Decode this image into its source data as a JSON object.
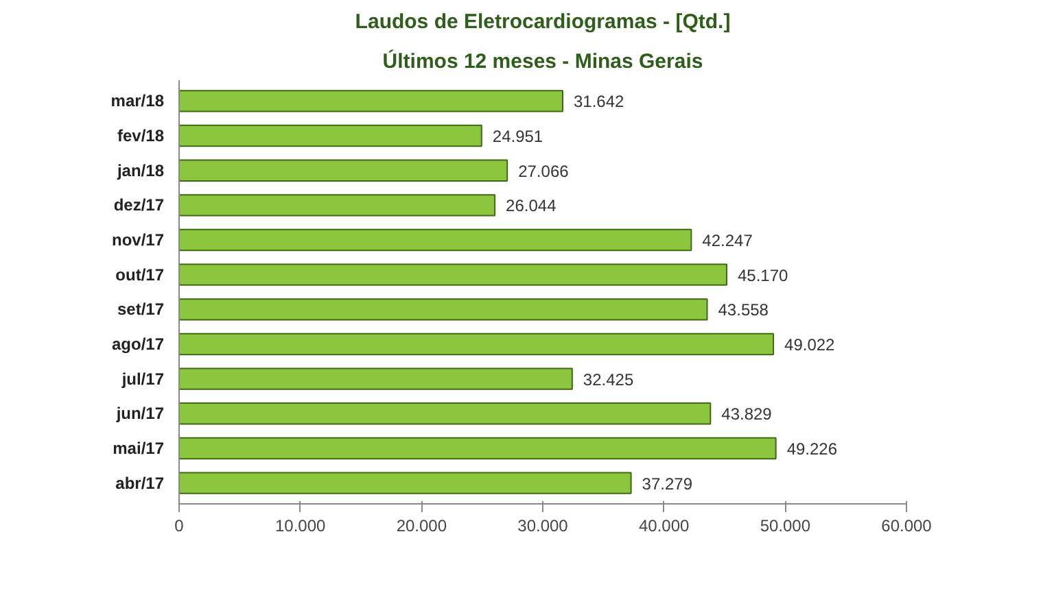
{
  "chart_data": {
    "type": "bar",
    "orientation": "horizontal",
    "title": "Laudos de Eletrocardiogramas - [Qtd.]",
    "subtitle": "Últimos 12 meses - Minas Gerais",
    "categories": [
      "mar/18",
      "fev/18",
      "jan/18",
      "dez/17",
      "nov/17",
      "out/17",
      "set/17",
      "ago/17",
      "jul/17",
      "jun/17",
      "mai/17",
      "abr/17"
    ],
    "values": [
      31642,
      24951,
      27066,
      26044,
      42247,
      45170,
      43558,
      49022,
      32425,
      43829,
      49226,
      37279
    ],
    "value_labels": [
      "31.642",
      "24.951",
      "27.066",
      "26.044",
      "42.247",
      "45.170",
      "43.558",
      "49.022",
      "32.425",
      "43.829",
      "49.226",
      "37.279"
    ],
    "color": "#8cc63f",
    "grid": false,
    "xlim": [
      0,
      60000
    ],
    "xticks": [
      0,
      {
        "value": 10000,
        "label": "10.000"
      },
      {
        "value": 20000,
        "label": "20.000"
      },
      {
        "value": 30000,
        "label": "30.000"
      },
      {
        "value": 40000,
        "label": "40.000"
      },
      {
        "value": 50000,
        "label": "50.000"
      },
      {
        "value": 60000,
        "label": "60.000"
      }
    ]
  }
}
